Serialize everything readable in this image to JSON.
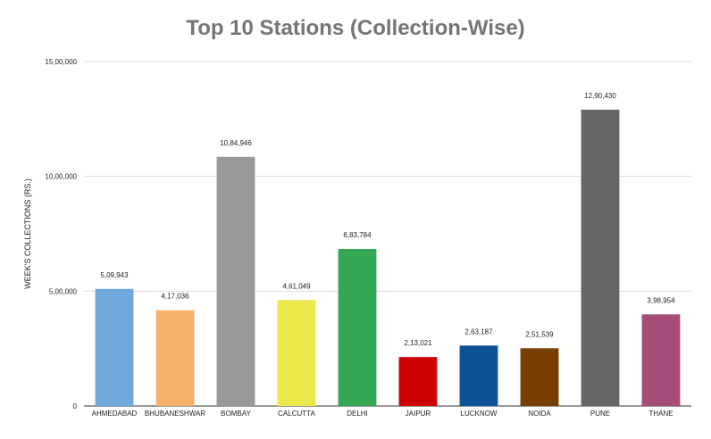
{
  "chart_data": {
    "type": "bar",
    "title": "Top 10 Stations (Collection-Wise)",
    "xlabel": "",
    "ylabel": "WEEK'S COLLECTIONS (RS.)",
    "ylim": [
      0,
      1500000
    ],
    "yticks": [
      0,
      500000,
      1000000,
      1500000
    ],
    "ytick_labels": [
      "0",
      "5,00,000",
      "10,00,000",
      "15,00,000"
    ],
    "grid": true,
    "legend": "none",
    "categories": [
      "AHMEDABAD",
      "BHUBANESHWAR",
      "BOMBAY",
      "CALCUTTA",
      "DELHI",
      "JAIPUR",
      "LUCKNOW",
      "NOIDA",
      "PUNE",
      "THANE"
    ],
    "values": [
      509943,
      417036,
      1084946,
      461049,
      683784,
      213021,
      263187,
      251539,
      1290430,
      398954
    ],
    "value_labels": [
      "5,09,943",
      "4,17,036",
      "10,84,946",
      "4,61,049",
      "6,83,784",
      "2,13,021",
      "2,63,187",
      "2,51,539",
      "12,90,430",
      "3,98,954"
    ],
    "colors": [
      "#6fa8dc",
      "#f6b26b",
      "#999999",
      "#ebe84b",
      "#34a853",
      "#cc0000",
      "#0b5394",
      "#783f04",
      "#666666",
      "#a64d79"
    ]
  }
}
